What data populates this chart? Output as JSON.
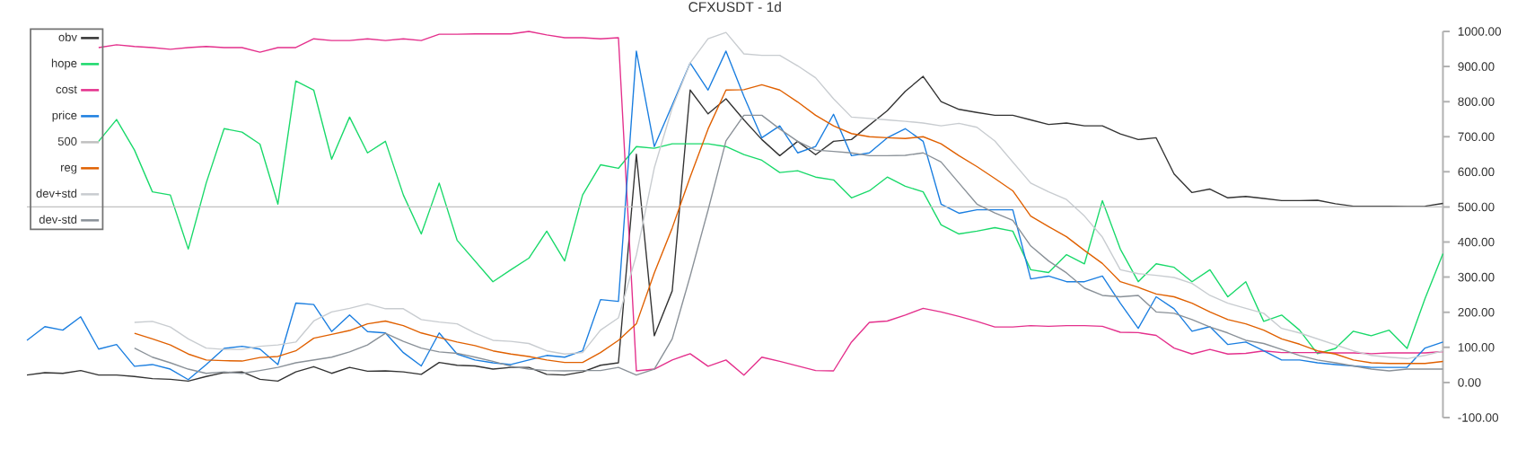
{
  "chart_data": {
    "type": "line",
    "title": "CFXUSDT - 1d",
    "categories": [
      null,
      null,
      null,
      null,
      null,
      null,
      null,
      null,
      null,
      null,
      null,
      null,
      null,
      null,
      null,
      null,
      null,
      null,
      null,
      null,
      null,
      null,
      null,
      null,
      null,
      null,
      null,
      null,
      null,
      null,
      null,
      null,
      null,
      null,
      null,
      null,
      null,
      null,
      null,
      null,
      null,
      null,
      null,
      null,
      null,
      null,
      null,
      null,
      null,
      null,
      null,
      null,
      null,
      null,
      null,
      null,
      null,
      null,
      null,
      null,
      null,
      null,
      null,
      null,
      null,
      null,
      null,
      null,
      null,
      null,
      null,
      null,
      null,
      null,
      null,
      null,
      null,
      null,
      null,
      null
    ],
    "series": [
      {
        "name": "obv",
        "color": "#333333",
        "values": [
          21,
          28,
          26,
          34,
          21,
          21,
          17,
          11,
          9,
          4,
          17,
          28,
          30,
          9,
          4,
          30,
          45,
          26,
          43,
          32,
          33,
          30,
          23,
          57,
          49,
          47,
          38,
          43,
          43,
          23,
          21,
          30,
          49,
          56,
          650,
          133,
          261,
          833,
          765,
          808,
          748,
          692,
          646,
          687,
          649,
          687,
          692,
          733,
          774,
          829,
          872,
          800,
          778,
          769,
          761,
          761,
          748,
          735,
          739,
          731,
          731,
          708,
          692,
          697,
          594,
          541,
          551,
          526,
          530,
          524,
          518,
          518,
          519,
          509,
          502,
          502,
          502,
          501,
          502,
          510
        ]
      },
      {
        "name": "hope",
        "color": "#19d96a",
        "values": [
          null,
          null,
          null,
          null,
          687,
          749,
          662,
          543,
          534,
          380,
          568,
          723,
          713,
          679,
          508,
          859,
          833,
          636,
          756,
          654,
          687,
          534,
          423,
          568,
          405,
          346,
          287,
          321,
          354,
          431,
          346,
          534,
          620,
          610,
          672,
          667,
          680,
          680,
          680,
          672,
          649,
          633,
          598,
          603,
          585,
          577,
          526,
          546,
          585,
          559,
          543,
          449,
          423,
          431,
          441,
          431,
          321,
          313,
          364,
          338,
          518,
          380,
          287,
          338,
          328,
          287,
          321,
          244,
          287,
          174,
          192,
          149,
          82,
          97,
          146,
          133,
          149,
          97,
          239,
          367
        ]
      },
      {
        "name": "cost",
        "color": "#e4308c",
        "values": [
          null,
          null,
          null,
          null,
          954,
          962,
          957,
          954,
          949,
          954,
          957,
          954,
          954,
          941,
          954,
          954,
          979,
          974,
          974,
          979,
          974,
          979,
          974,
          992,
          992,
          993,
          993,
          993,
          1000,
          990,
          982,
          982,
          979,
          982,
          33,
          38,
          64,
          82,
          46,
          64,
          21,
          72,
          60,
          47,
          34,
          33,
          115,
          171,
          175,
          192,
          211,
          201,
          188,
          174,
          158,
          158,
          162,
          160,
          162,
          162,
          160,
          143,
          142,
          134,
          98,
          81,
          94,
          81,
          83,
          90,
          85,
          85,
          85,
          84,
          84,
          82,
          84,
          84,
          84,
          88
        ]
      },
      {
        "name": "price",
        "color": "#1a7ee0",
        "values": [
          120,
          159,
          149,
          187,
          95,
          108,
          46,
          51,
          38,
          8,
          51,
          97,
          103,
          95,
          51,
          226,
          222,
          145,
          192,
          145,
          141,
          85,
          47,
          141,
          81,
          64,
          56,
          51,
          64,
          77,
          72,
          90,
          236,
          231,
          944,
          672,
          790,
          910,
          833,
          944,
          815,
          697,
          731,
          654,
          672,
          764,
          646,
          654,
          697,
          723,
          687,
          508,
          482,
          492,
          492,
          492,
          295,
          303,
          287,
          287,
          303,
          226,
          154,
          244,
          210,
          146,
          159,
          108,
          115,
          90,
          64,
          64,
          56,
          51,
          47,
          43,
          43,
          43,
          98,
          115
        ]
      },
      {
        "name": "500",
        "color": "#c0c0c0",
        "values": [
          500,
          500,
          500,
          500,
          500,
          500,
          500,
          500,
          500,
          500,
          500,
          500,
          500,
          500,
          500,
          500,
          500,
          500,
          500,
          500,
          500,
          500,
          500,
          500,
          500,
          500,
          500,
          500,
          500,
          500,
          500,
          500,
          500,
          500,
          500,
          500,
          500,
          500,
          500,
          500,
          500,
          500,
          500,
          500,
          500,
          500,
          500,
          500,
          500,
          500,
          500,
          500,
          500,
          500,
          500,
          500,
          500,
          500,
          500,
          500,
          500,
          500,
          500,
          500,
          500,
          500,
          500,
          500,
          500,
          500,
          500,
          500,
          500,
          500,
          500,
          500,
          500,
          500,
          500,
          500
        ]
      },
      {
        "name": "reg",
        "color": "#e06000",
        "values": [
          null,
          null,
          null,
          null,
          null,
          null,
          140,
          124,
          107,
          81,
          64,
          62,
          61,
          71,
          74,
          90,
          126,
          137,
          148,
          167,
          175,
          162,
          141,
          128,
          115,
          105,
          90,
          81,
          74,
          64,
          57,
          57,
          85,
          120,
          167,
          312,
          440,
          585,
          722,
          833,
          834,
          848,
          833,
          799,
          761,
          731,
          709,
          700,
          697,
          695,
          700,
          680,
          646,
          615,
          581,
          546,
          474,
          444,
          415,
          376,
          339,
          287,
          271,
          252,
          244,
          226,
          201,
          179,
          167,
          149,
          124,
          109,
          90,
          81,
          64,
          56,
          54,
          54,
          54,
          60
        ]
      },
      {
        "name": "dev+std",
        "color": "#c8ccd0",
        "values": [
          null,
          null,
          null,
          null,
          null,
          null,
          171,
          174,
          158,
          124,
          98,
          94,
          94,
          103,
          107,
          115,
          175,
          201,
          211,
          224,
          210,
          210,
          179,
          172,
          167,
          141,
          120,
          117,
          111,
          90,
          81,
          85,
          149,
          184,
          363,
          611,
          782,
          910,
          979,
          997,
          936,
          932,
          932,
          902,
          868,
          808,
          756,
          752,
          748,
          744,
          739,
          731,
          738,
          727,
          688,
          628,
          568,
          543,
          521,
          474,
          414,
          321,
          310,
          305,
          299,
          282,
          248,
          226,
          211,
          197,
          154,
          141,
          124,
          107,
          90,
          77,
          72,
          68,
          77,
          90
        ]
      },
      {
        "name": "dev-std",
        "color": "#8a9198",
        "values": [
          null,
          null,
          null,
          null,
          null,
          null,
          98,
          72,
          56,
          38,
          26,
          30,
          26,
          34,
          43,
          56,
          64,
          72,
          87,
          107,
          140,
          117,
          98,
          87,
          83,
          72,
          60,
          46,
          38,
          34,
          33,
          34,
          34,
          43,
          21,
          38,
          124,
          303,
          491,
          688,
          761,
          761,
          722,
          687,
          662,
          658,
          654,
          646,
          646,
          647,
          654,
          628,
          568,
          508,
          483,
          462,
          389,
          346,
          312,
          269,
          248,
          244,
          248,
          201,
          197,
          179,
          158,
          141,
          120,
          111,
          94,
          77,
          64,
          56,
          47,
          38,
          33,
          38,
          38,
          38
        ]
      }
    ],
    "ylim": [
      -100,
      1000
    ],
    "yticks": [
      {
        "value": -100,
        "label": "-100.00"
      },
      {
        "value": 0,
        "label": "0.00"
      },
      {
        "value": 100,
        "label": "100.00"
      },
      {
        "value": 200,
        "label": "200.00"
      },
      {
        "value": 300,
        "label": "300.00"
      },
      {
        "value": 400,
        "label": "400.00"
      },
      {
        "value": 500,
        "label": "500.00"
      },
      {
        "value": 600,
        "label": "600.00"
      },
      {
        "value": 700,
        "label": "700.00"
      },
      {
        "value": 800,
        "label": "800.00"
      },
      {
        "value": 900,
        "label": "900.00"
      },
      {
        "value": 1000,
        "label": "1000.00"
      }
    ],
    "legend": "top left",
    "tick_labels": "y"
  }
}
